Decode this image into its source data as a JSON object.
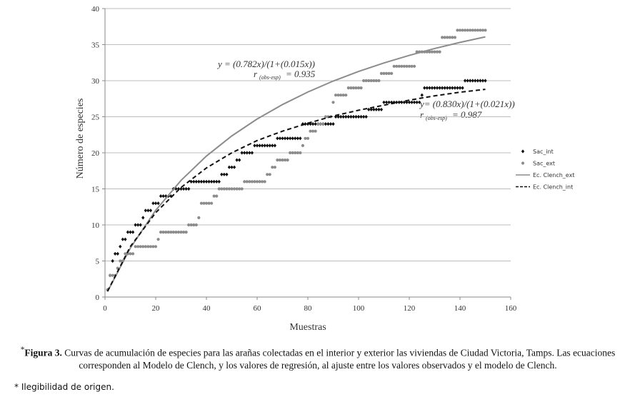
{
  "chart_data": {
    "type": "scatter",
    "x_label": "Muestras",
    "y_label": "Número de especies",
    "xlim": [
      0,
      160
    ],
    "xticks": [
      0,
      20,
      40,
      60,
      80,
      100,
      120,
      140,
      160
    ],
    "ylim": [
      0,
      40
    ],
    "yticks": [
      0,
      5,
      10,
      15,
      20,
      25,
      30,
      35,
      40
    ],
    "grid": true,
    "legend": "right",
    "x": [
      1,
      2,
      3,
      4,
      5,
      6,
      7,
      8,
      9,
      10,
      11,
      12,
      13,
      14,
      15,
      16,
      17,
      18,
      19,
      20,
      21,
      22,
      23,
      24,
      25,
      26,
      27,
      28,
      29,
      30,
      31,
      32,
      33,
      34,
      35,
      36,
      37,
      38,
      39,
      40,
      41,
      42,
      43,
      44,
      45,
      46,
      47,
      48,
      49,
      50,
      51,
      52,
      53,
      54,
      55,
      56,
      57,
      58,
      59,
      60,
      61,
      62,
      63,
      64,
      65,
      66,
      67,
      68,
      69,
      70,
      71,
      72,
      73,
      74,
      75,
      76,
      77,
      78,
      79,
      80,
      81,
      82,
      83,
      84,
      85,
      86,
      87,
      88,
      89,
      90,
      91,
      92,
      93,
      94,
      95,
      96,
      97,
      98,
      99,
      100,
      101,
      102,
      103,
      104,
      105,
      106,
      107,
      108,
      109,
      110,
      111,
      112,
      113,
      114,
      115,
      116,
      117,
      118,
      119,
      120,
      121,
      122,
      123,
      124,
      125,
      126,
      127,
      128,
      129,
      130,
      131,
      132,
      133,
      134,
      135,
      136,
      137,
      138,
      139,
      140,
      141,
      142,
      143,
      144,
      145,
      146,
      147,
      148,
      149,
      150
    ],
    "series": [
      {
        "name": "Sac_int",
        "kind": "points",
        "marker": "diamond",
        "color": "#111111",
        "values": [
          1,
          3,
          5,
          6,
          6,
          7,
          8,
          8,
          9,
          9,
          9,
          10,
          10,
          10,
          11,
          12,
          12,
          12,
          13,
          13,
          13,
          14,
          14,
          14,
          14,
          14,
          15,
          15,
          15,
          15,
          15,
          15,
          15,
          16,
          16,
          16,
          16,
          16,
          16,
          16,
          16,
          16,
          16,
          16,
          16,
          17,
          17,
          17,
          18,
          18,
          18,
          19,
          19,
          20,
          20,
          20,
          20,
          20,
          21,
          21,
          21,
          21,
          21,
          21,
          21,
          21,
          21,
          22,
          22,
          22,
          22,
          22,
          22,
          22,
          22,
          22,
          22,
          24,
          24,
          24,
          24,
          24,
          24,
          24,
          24,
          24,
          24,
          24,
          24,
          24,
          25,
          25,
          25,
          25,
          25,
          25,
          25,
          25,
          25,
          25,
          25,
          25,
          25,
          26,
          26,
          26,
          26,
          26,
          26,
          27,
          27,
          27,
          27,
          27,
          27,
          27,
          27,
          27,
          27,
          27,
          27,
          27,
          27,
          27,
          28,
          29,
          29,
          29,
          29,
          29,
          29,
          29,
          29,
          29,
          29,
          29,
          29,
          29,
          29,
          29,
          29,
          30,
          30,
          30,
          30,
          30,
          30,
          30,
          30,
          30
        ]
      },
      {
        "name": "Sac_ext",
        "kind": "points",
        "marker": "circle",
        "color": "#8c8c8c",
        "values": [
          1,
          3,
          3,
          3,
          4,
          5,
          5,
          6,
          6,
          6,
          6,
          7,
          7,
          7,
          7,
          7,
          7,
          7,
          7,
          7,
          8,
          9,
          9,
          9,
          9,
          9,
          9,
          9,
          9,
          9,
          9,
          9,
          10,
          10,
          10,
          10,
          11,
          13,
          13,
          13,
          13,
          13,
          14,
          14,
          15,
          15,
          15,
          15,
          15,
          15,
          15,
          15,
          15,
          15,
          16,
          16,
          16,
          16,
          16,
          16,
          16,
          16,
          16,
          17,
          17,
          18,
          18,
          19,
          19,
          19,
          19,
          19,
          20,
          20,
          20,
          20,
          20,
          21,
          22,
          22,
          23,
          23,
          23,
          24,
          24,
          24,
          25,
          25,
          25,
          27,
          28,
          28,
          28,
          28,
          28,
          29,
          29,
          29,
          29,
          29,
          29,
          30,
          30,
          30,
          30,
          30,
          30,
          30,
          31,
          31,
          31,
          31,
          31,
          32,
          32,
          32,
          32,
          32,
          32,
          32,
          32,
          32,
          34,
          34,
          34,
          34,
          34,
          34,
          34,
          34,
          34,
          34,
          36,
          36,
          36,
          36,
          36,
          36,
          37,
          37,
          37,
          37,
          37,
          37,
          37,
          37,
          37,
          37,
          37,
          37
        ]
      },
      {
        "name": "Ec. Clench_ext",
        "kind": "line",
        "dash": false,
        "color": "#8c8c8c",
        "x": [
          1,
          10,
          20,
          30,
          40,
          50,
          60,
          70,
          80,
          90,
          100,
          110,
          120,
          130,
          140,
          150
        ],
        "values": [
          0.77,
          6.8,
          12.03,
          16.18,
          19.55,
          22.34,
          24.69,
          26.69,
          28.43,
          29.95,
          31.28,
          32.46,
          33.51,
          34.46,
          35.31,
          36.08
        ]
      },
      {
        "name": "Ec. Clench_int",
        "kind": "line",
        "dash": true,
        "color": "#111111",
        "x": [
          1,
          10,
          20,
          30,
          40,
          50,
          60,
          70,
          80,
          90,
          100,
          110,
          120,
          130,
          140,
          150
        ],
        "values": [
          0.8,
          7,
          11.7,
          15.2,
          17.9,
          20,
          21.7,
          23,
          24.1,
          25.1,
          25.9,
          26.6,
          27.3,
          27.9,
          28.4,
          28.8
        ]
      }
    ],
    "annotations": [
      {
        "equation": "y = (0.782x)/(1+(0.015x))",
        "r": "r",
        "sub": "(obs-esp)",
        "rest": "= 0.935"
      },
      {
        "equation": "y= (0.830x)/(1+(0.021x))",
        "r": "r",
        "sub": "(obs-esp)",
        "rest": "= 0.987"
      }
    ]
  },
  "caption": {
    "mark": "*",
    "label": "Figura 3.",
    "text": "Curvas de acumulación de especies para las arañas colectadas en el interior y exterior las viviendas de Ciudad Victoria, Tamps. Las ecuaciones corresponden al Modelo de Clench, y los valores de regresión, al ajuste entre los valores observados y el modelo de Clench."
  },
  "footnote": "* Ilegibilidad de origen."
}
